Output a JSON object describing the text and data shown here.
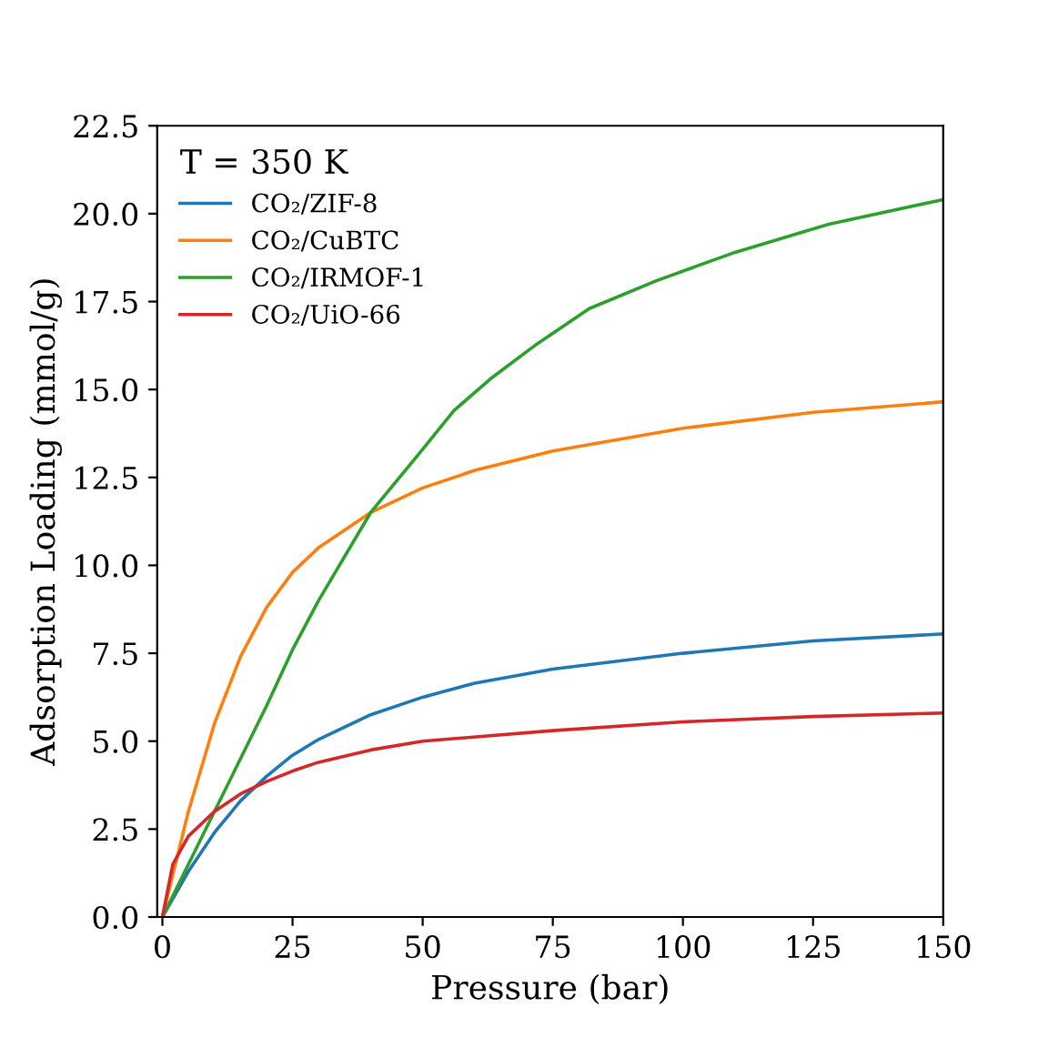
{
  "chart_data": {
    "type": "line",
    "xlabel": "Pressure (bar)",
    "ylabel": "Adsorption Loading (mmol/g)",
    "legend_title": "T = 350 K",
    "legend": "top left",
    "grid": false,
    "xlim": [
      -1,
      150
    ],
    "xticks": [
      0,
      25,
      50,
      75,
      100,
      125,
      150
    ],
    "ylim": [
      0,
      22.5
    ],
    "yticks": [
      {
        "value": 0,
        "label": "0.0"
      },
      {
        "value": 2.5,
        "label": "2.5"
      },
      {
        "value": 5,
        "label": "5.0"
      },
      {
        "value": 7.5,
        "label": "7.5"
      },
      {
        "value": 10,
        "label": "10.0"
      },
      {
        "value": 12.5,
        "label": "12.5"
      },
      {
        "value": 15,
        "label": "15.0"
      },
      {
        "value": 17.5,
        "label": "17.5"
      },
      {
        "value": 20,
        "label": "20.0"
      },
      {
        "value": 22.5,
        "label": "22.5"
      }
    ],
    "series": [
      {
        "name": "CO₂/ZIF-8",
        "color": "#1f77b4",
        "x": [
          0,
          5,
          10,
          15,
          20,
          25,
          30,
          40,
          50,
          60,
          75,
          100,
          125,
          150
        ],
        "values": [
          0,
          1.3,
          2.4,
          3.3,
          4.0,
          4.6,
          5.05,
          5.75,
          6.25,
          6.65,
          7.05,
          7.5,
          7.85,
          8.05
        ]
      },
      {
        "name": "CO₂/CuBTC",
        "color": "#ff7f0e",
        "x": [
          0,
          5,
          10,
          15,
          20,
          25,
          30,
          40,
          50,
          60,
          75,
          100,
          125,
          150
        ],
        "values": [
          0,
          3.0,
          5.5,
          7.4,
          8.8,
          9.8,
          10.5,
          11.5,
          12.2,
          12.7,
          13.25,
          13.9,
          14.35,
          14.65
        ]
      },
      {
        "name": "CO₂/IRMOF-1",
        "color": "#2ca02c",
        "x": [
          0,
          10,
          20,
          25,
          30,
          40,
          50,
          56,
          63,
          72,
          82,
          95,
          110,
          128,
          150
        ],
        "values": [
          0,
          3.0,
          6.0,
          7.6,
          9.0,
          11.5,
          13.3,
          14.4,
          15.3,
          16.3,
          17.3,
          18.1,
          18.9,
          19.7,
          20.4
        ]
      },
      {
        "name": "CO₂/UiO-66",
        "color": "#d62728",
        "x": [
          0,
          2,
          5,
          10,
          15,
          20,
          25,
          30,
          40,
          50,
          75,
          100,
          125,
          150
        ],
        "values": [
          0,
          1.5,
          2.3,
          3.0,
          3.5,
          3.85,
          4.15,
          4.4,
          4.75,
          5.0,
          5.3,
          5.55,
          5.7,
          5.8
        ]
      }
    ]
  }
}
